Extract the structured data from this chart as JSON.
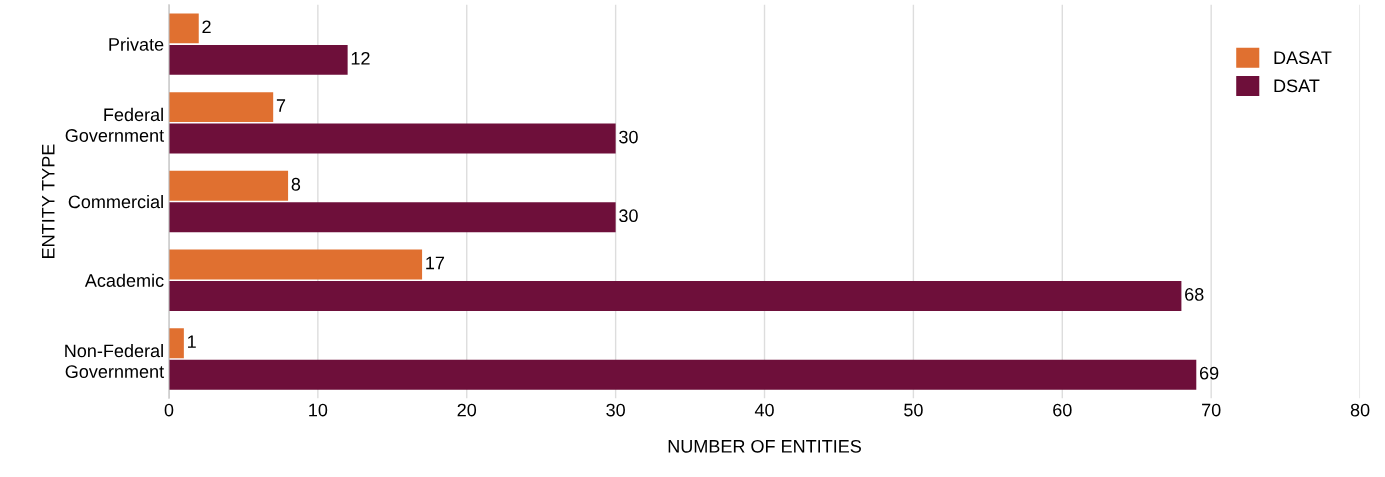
{
  "chart_data": {
    "type": "bar",
    "orientation": "horizontal",
    "xlabel": "NUMBER OF ENTITIES",
    "ylabel": "ENTITY TYPE",
    "categories": [
      "Private",
      "Federal Government",
      "Commercial",
      "Academic",
      "Non-Federal Government"
    ],
    "series": [
      {
        "name": "DASAT",
        "color": "#e07030",
        "values": [
          2,
          7,
          8,
          17,
          1
        ]
      },
      {
        "name": "DSAT",
        "color": "#6e0f3a",
        "values": [
          12,
          30,
          30,
          68,
          69
        ]
      }
    ],
    "xlim": [
      0,
      80
    ],
    "xticks": [
      0,
      10,
      20,
      30,
      40,
      50,
      60,
      70,
      80
    ],
    "grid": "x",
    "legend": "top right",
    "data_labels": true
  }
}
